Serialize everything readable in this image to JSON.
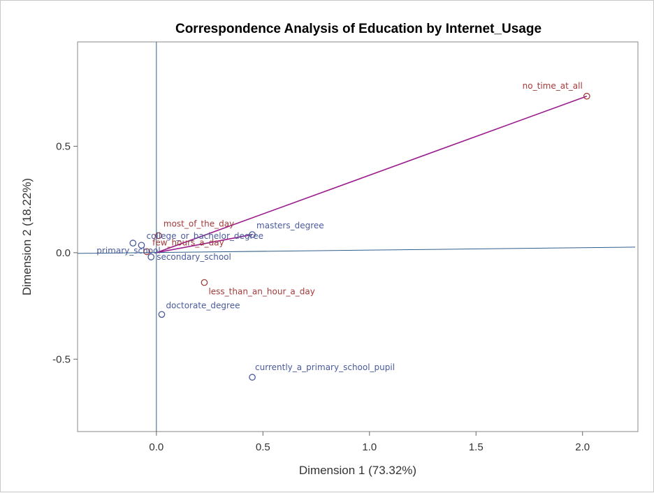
{
  "chart_data": {
    "type": "scatter",
    "title": "Correspondence Analysis of Education by Internet_Usage",
    "xlabel": "Dimension 1 (73.32%)",
    "ylabel": "Dimension 2 (18.22%)",
    "xlim": [
      -0.37,
      2.26
    ],
    "ylim": [
      -0.84,
      0.99
    ],
    "x_ticks": [
      {
        "value": 0.0,
        "label": "0.0"
      },
      {
        "value": 0.5,
        "label": "0.5"
      },
      {
        "value": 1.0,
        "label": "1.0"
      },
      {
        "value": 1.5,
        "label": "1.5"
      },
      {
        "value": 2.0,
        "label": "2.0"
      }
    ],
    "y_ticks": [
      {
        "value": 0.5,
        "label": "0.5"
      },
      {
        "value": 0.0,
        "label": "0.0"
      },
      {
        "value": -0.5,
        "label": "-0.5"
      }
    ],
    "grid": false,
    "colors": {
      "education": "#4a5a9c",
      "internet_usage": "#a33a3a",
      "vector": "#9b1a8c",
      "reference_line": "#2f5f8a",
      "frame": "#888888"
    },
    "series": [
      {
        "group": "education",
        "points": [
          {
            "label": "primary_school",
            "x": -0.11,
            "y": 0.045
          },
          {
            "label": "college_or_bachelor_degree",
            "x": -0.07,
            "y": 0.035
          },
          {
            "label": "secondary_school",
            "x": -0.025,
            "y": -0.02
          },
          {
            "label": "masters_degree",
            "x": 0.45,
            "y": 0.085
          },
          {
            "label": "doctorate_degree",
            "x": 0.025,
            "y": -0.29
          },
          {
            "label": "currently_a_primary_school_pupil",
            "x": 0.45,
            "y": -0.585
          }
        ]
      },
      {
        "group": "internet_usage",
        "points": [
          {
            "label": "no_time_at_all",
            "x": 2.02,
            "y": 0.735
          },
          {
            "label": "most_of_the_day",
            "x": 0.01,
            "y": 0.08
          },
          {
            "label": "few_hours_a_day",
            "x": -0.045,
            "y": 0.005
          },
          {
            "label": "less_than_an_hour_a_day",
            "x": 0.225,
            "y": -0.14
          }
        ]
      }
    ],
    "vectors": [
      {
        "from": "origin",
        "to": "no_time_at_all"
      },
      {
        "from": "origin",
        "to": "masters_degree"
      }
    ]
  }
}
